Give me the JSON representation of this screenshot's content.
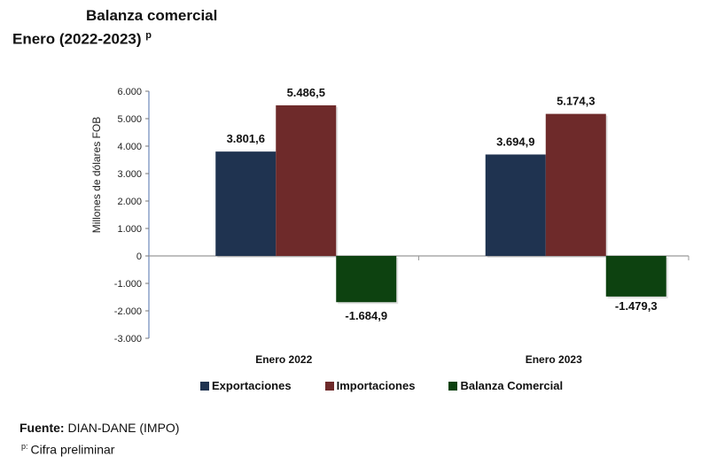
{
  "chart_data": {
    "type": "bar",
    "title": "Balanza comercial",
    "subtitle": "Enero (2022-2023)",
    "subtitle_superscript": "p",
    "xlabel": "",
    "ylabel": "Millones de dólares FOB",
    "ylim": [
      -3000,
      6000
    ],
    "yticks": [
      6000,
      5000,
      4000,
      3000,
      2000,
      1000,
      0,
      -1000,
      -2000,
      -3000
    ],
    "ytick_labels": [
      "6.000",
      "5.000",
      "4.000",
      "3.000",
      "2.000",
      "1.000",
      "0",
      "-1.000",
      "-2.000",
      "-3.000"
    ],
    "grid": false,
    "legend_position": "bottom",
    "categories": [
      "Enero 2022",
      "Enero 2023"
    ],
    "series": [
      {
        "name": "Exportaciones",
        "color": "#1f3350",
        "values": [
          3801.6,
          3694.9
        ],
        "labels": [
          "3.801,6",
          "3.694,9"
        ]
      },
      {
        "name": "Importaciones",
        "color": "#6e2a2a",
        "values": [
          5486.5,
          5174.3
        ],
        "labels": [
          "5.486,5",
          "5.174,3"
        ]
      },
      {
        "name": "Balanza Comercial",
        "color": "#0d4210",
        "values": [
          -1684.9,
          -1479.3
        ],
        "labels": [
          "-1.684,9",
          "-1.479,3"
        ]
      }
    ]
  },
  "footer": {
    "source_label": "Fuente:",
    "source_value": " DIAN-DANE (IMPO)",
    "note_marker": "p:",
    "note_text": "Cifra preliminar"
  }
}
